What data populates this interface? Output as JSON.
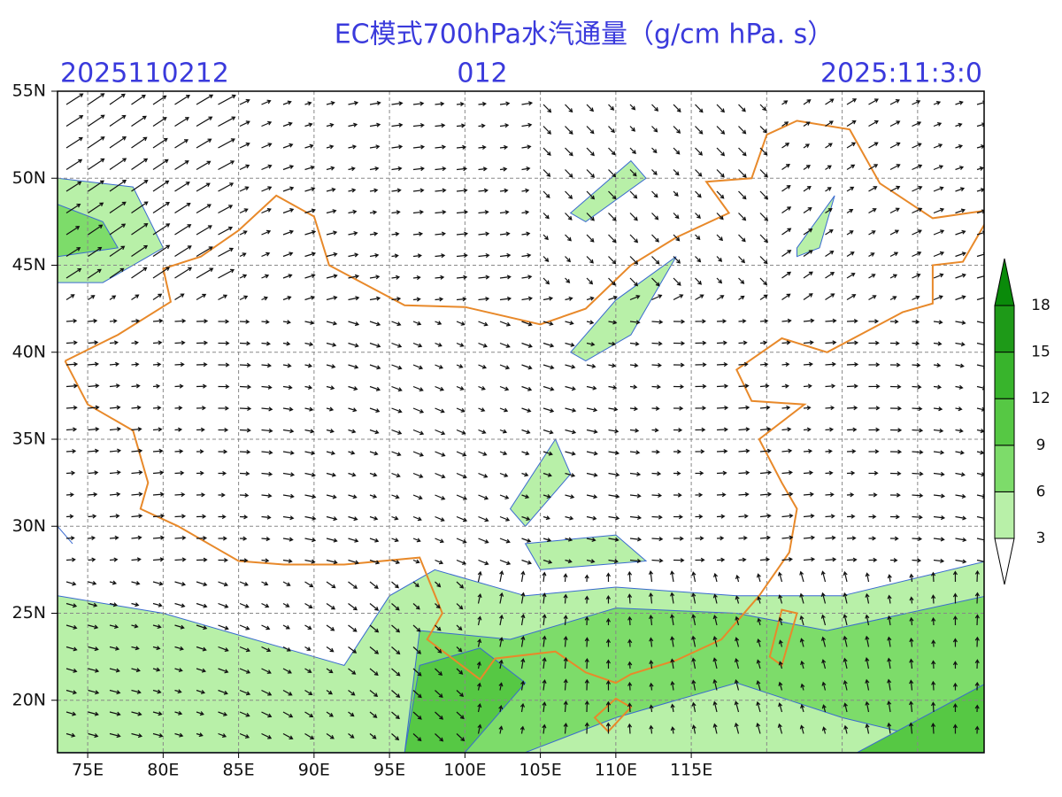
{
  "header": {
    "title": "EC模式700hPa水汽通量（g/cm hPa. s）",
    "init_time": "2025110212",
    "forecast_hour": "012",
    "valid_time": "2025:11:3:0"
  },
  "axes": {
    "lat_labels": [
      "55N",
      "50N",
      "45N",
      "40N",
      "35N",
      "30N",
      "25N",
      "20N"
    ],
    "lon_labels": [
      "75E",
      "80E",
      "85E",
      "90E",
      "95E",
      "100E",
      "105E",
      "110E",
      "115E"
    ]
  },
  "colorbar": {
    "levels": [
      3,
      6,
      9,
      12,
      15,
      18
    ]
  }
}
